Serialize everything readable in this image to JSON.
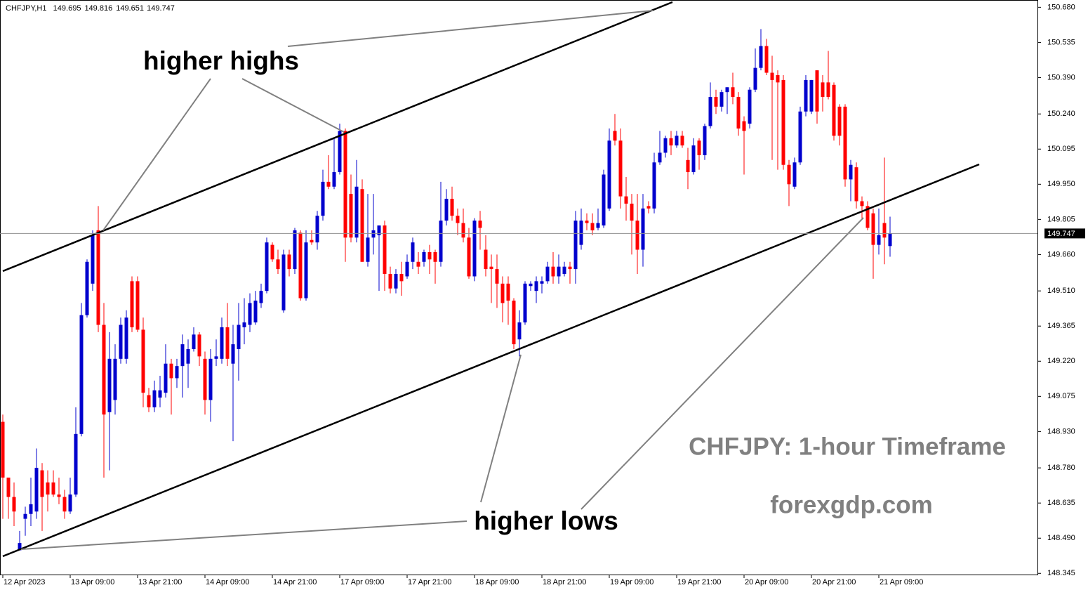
{
  "chart_data": {
    "type": "candlestick",
    "symbol": "CHFJPY,H1",
    "annotations": [
      "higher highs",
      "higher lows",
      "CHFJPY: 1-hour Timeframe",
      "forexgdp.com"
    ],
    "up_color": "#0000cd",
    "down_color": "#ff0000",
    "categories": [
      "12 Apr 2023",
      null,
      null,
      null,
      null,
      null,
      null,
      null,
      null,
      null,
      null,
      null,
      "13 Apr 09:00",
      null,
      null,
      null,
      null,
      null,
      null,
      null,
      null,
      null,
      null,
      null,
      "13 Apr 21:00",
      null,
      null,
      null,
      null,
      null,
      null,
      null,
      null,
      null,
      null,
      null,
      "14 Apr 09:00",
      null,
      null,
      null,
      null,
      null,
      null,
      null,
      null,
      null,
      null,
      null,
      "14 Apr 21:00",
      null,
      null,
      null,
      null,
      null,
      null,
      null,
      null,
      null,
      null,
      null,
      "17 Apr 09:00",
      null,
      null,
      null,
      null,
      null,
      null,
      null,
      null,
      null,
      null,
      null,
      "17 Apr 21:00",
      null,
      null,
      null,
      null,
      null,
      null,
      null,
      null,
      null,
      null,
      null,
      "18 Apr 09:00",
      null,
      null,
      null,
      null,
      null,
      null,
      null,
      null,
      null,
      null,
      null,
      "18 Apr 21:00",
      null,
      null,
      null,
      null,
      null,
      null,
      null,
      null,
      null,
      null,
      null,
      "19 Apr 09:00",
      null,
      null,
      null,
      null,
      null,
      null,
      null,
      null,
      null,
      null,
      null,
      "19 Apr 21:00",
      null,
      null,
      null,
      null,
      null,
      null,
      null,
      null,
      null,
      null,
      null,
      "20 Apr 09:00",
      null,
      null,
      null,
      null,
      null,
      null,
      null,
      null,
      null,
      null,
      null,
      "20 Apr 21:00",
      null,
      null,
      null,
      null,
      null,
      null,
      null,
      null,
      null,
      null,
      null,
      "21 Apr 09:00",
      null,
      null
    ],
    "open": [
      148.97,
      148.74,
      148.66,
      148.44,
      148.57,
      148.59,
      148.6,
      148.77,
      148.72,
      148.72,
      148.67,
      148.66,
      148.6,
      148.67,
      148.92,
      149.41,
      149.54,
      149.76,
      149.37,
      149.01,
      149.06,
      149.23,
      149.23,
      149.55,
      149.55,
      149.35,
      149.08,
      149.03,
      149.07,
      149.09,
      149.21,
      149.15,
      149.2,
      149.21,
      149.27,
      149.33,
      149.23,
      149.06,
      149.23,
      149.23,
      149.36,
      149.21,
      149.27,
      149.36,
      149.37,
      149.38,
      149.46,
      149.51,
      149.7,
      149.64,
      149.43,
      149.66,
      149.6,
      149.75,
      149.48,
      149.72,
      149.71,
      149.82,
      149.96,
      149.94,
      150.0,
      150.17,
      149.91,
      149.73,
      149.93,
      149.63,
      149.73,
      149.74,
      149.78,
      149.58,
      149.52,
      149.58,
      149.57,
      149.63,
      149.63,
      149.63,
      149.67,
      149.67,
      149.63,
      149.8,
      149.89,
      149.82,
      149.79,
      149.73,
      149.57,
      149.8,
      149.68,
      149.61,
      149.6,
      149.54,
      149.54,
      149.47,
      149.31,
      149.38,
      149.53,
      149.51,
      149.54,
      149.55,
      149.61,
      149.57,
      149.58,
      149.61,
      149.6,
      149.7,
      149.8,
      149.79,
      149.77,
      149.78,
      149.85,
      150.17,
      150.13,
      149.9,
      149.87,
      149.8,
      149.68,
      149.86,
      149.85,
      150.04,
      150.08,
      150.14,
      150.11,
      150.15,
      150.05,
      150.0,
      150.13,
      150.07,
      150.19,
      150.31,
      150.27,
      150.33,
      150.35,
      150.31,
      150.21,
      150.2,
      150.34,
      150.43,
      150.52,
      150.41,
      150.4,
      150.38,
      150.03,
      149.94,
      150.04,
      150.25,
      150.25,
      150.42,
      150.37,
      150.37,
      150.36,
      150.27,
      150.27,
      149.97,
      150.02,
      149.88,
      149.86,
      149.83,
      149.7,
      149.79,
      149.695
    ],
    "high": [
      149.0,
      148.74,
      148.72,
      148.52,
      148.62,
      148.74,
      148.86,
      148.8,
      148.77,
      148.77,
      148.74,
      148.69,
      148.74,
      149.03,
      149.46,
      149.64,
      149.76,
      149.86,
      149.46,
      149.34,
      149.29,
      149.4,
      149.43,
      149.57,
      149.57,
      149.4,
      149.11,
      149.14,
      149.16,
      149.29,
      149.23,
      149.23,
      149.33,
      149.31,
      149.36,
      149.34,
      149.26,
      149.27,
      149.31,
      149.4,
      149.46,
      149.37,
      149.46,
      149.48,
      149.5,
      149.51,
      149.54,
      149.73,
      149.71,
      149.68,
      149.68,
      149.68,
      149.77,
      149.76,
      149.76,
      149.76,
      149.84,
      150.01,
      150.07,
      150.14,
      150.2,
      150.18,
      149.99,
      150.05,
      149.97,
      149.91,
      149.91,
      149.78,
      149.8,
      149.61,
      149.6,
      149.63,
      149.66,
      149.73,
      149.67,
      149.68,
      149.7,
      149.68,
      149.96,
      149.93,
      149.94,
      149.85,
      149.85,
      149.77,
      149.81,
      149.84,
      149.74,
      149.66,
      149.66,
      149.57,
      149.57,
      149.48,
      149.43,
      149.55,
      149.55,
      149.57,
      149.57,
      149.63,
      149.67,
      149.66,
      149.63,
      149.63,
      149.84,
      149.85,
      149.83,
      149.83,
      149.85,
      150.01,
      150.18,
      150.24,
      150.18,
      149.98,
      149.91,
      149.91,
      149.91,
      149.88,
      150.08,
      150.17,
      150.15,
      150.17,
      150.17,
      150.17,
      150.1,
      150.14,
      150.14,
      150.2,
      150.37,
      150.34,
      150.34,
      150.35,
      150.41,
      150.33,
      150.23,
      150.35,
      150.51,
      150.59,
      150.55,
      150.48,
      150.42,
      150.4,
      150.05,
      150.06,
      150.27,
      150.4,
      150.38,
      150.42,
      150.4,
      150.5,
      150.37,
      150.28,
      150.28,
      150.05,
      150.04,
      149.9,
      149.88,
      149.85,
      149.85,
      150.06,
      149.816
    ],
    "low": [
      148.57,
      148.57,
      148.54,
      148.44,
      148.5,
      148.54,
      148.57,
      148.52,
      148.6,
      148.66,
      148.63,
      148.57,
      148.59,
      148.66,
      148.91,
      149.4,
      149.51,
      149.34,
      148.74,
      148.77,
      149.0,
      149.21,
      149.21,
      149.34,
      149.34,
      149.03,
      149.01,
      149.01,
      149.03,
      149.07,
      149.0,
      149.11,
      149.07,
      149.11,
      149.26,
      149.2,
      149.0,
      148.97,
      149.2,
      149.21,
      149.2,
      148.89,
      149.14,
      149.29,
      149.34,
      149.37,
      149.44,
      149.5,
      149.63,
      149.58,
      149.42,
      149.57,
      149.58,
      149.47,
      149.47,
      149.7,
      149.68,
      149.8,
      149.93,
      149.93,
      149.99,
      149.63,
      149.71,
      149.71,
      149.63,
      149.61,
      149.66,
      149.51,
      149.51,
      149.5,
      149.5,
      149.49,
      149.56,
      149.6,
      149.58,
      149.61,
      149.58,
      149.54,
      149.61,
      149.78,
      149.8,
      149.74,
      149.71,
      149.56,
      149.55,
      149.68,
      149.57,
      149.46,
      149.44,
      149.38,
      149.37,
      149.27,
      149.24,
      149.37,
      149.51,
      149.46,
      149.5,
      149.54,
      149.54,
      149.54,
      149.57,
      149.54,
      149.54,
      149.68,
      149.76,
      149.74,
      149.76,
      149.77,
      149.84,
      150.11,
      149.85,
      149.8,
      149.66,
      149.58,
      149.61,
      149.83,
      149.83,
      150.03,
      150.06,
      150.07,
      150.1,
      150.1,
      149.93,
      149.99,
      150.01,
      150.05,
      150.18,
      150.24,
      150.25,
      150.24,
      150.28,
      150.15,
      149.99,
      150.18,
      150.33,
      150.42,
      150.4,
      150.05,
      150.01,
      150.01,
      149.86,
      149.93,
      150.03,
      150.23,
      150.24,
      150.2,
      150.25,
      150.3,
      150.13,
      150.11,
      149.94,
      149.88,
      149.85,
      149.81,
      149.76,
      149.56,
      149.66,
      149.62,
      149.651
    ],
    "close": [
      148.74,
      148.66,
      148.6,
      148.47,
      148.59,
      148.63,
      148.78,
      148.66,
      148.67,
      148.67,
      148.66,
      148.6,
      148.67,
      148.92,
      149.41,
      149.63,
      149.74,
      149.37,
      149.0,
      149.23,
      149.23,
      149.37,
      149.4,
      149.36,
      149.35,
      149.09,
      149.03,
      149.1,
      149.1,
      149.21,
      149.15,
      149.2,
      149.29,
      149.27,
      149.33,
      149.24,
      149.06,
      149.23,
      149.24,
      149.36,
      149.23,
      149.29,
      149.37,
      149.38,
      149.46,
      149.47,
      149.51,
      149.71,
      149.64,
      149.6,
      149.66,
      149.6,
      149.76,
      149.48,
      149.71,
      149.71,
      149.82,
      149.96,
      149.94,
      150.0,
      150.17,
      149.73,
      149.73,
      149.94,
      149.63,
      149.73,
      149.76,
      149.78,
      149.58,
      149.52,
      149.58,
      149.55,
      149.63,
      149.71,
      149.61,
      149.67,
      149.64,
      149.63,
      149.8,
      149.89,
      149.82,
      149.79,
      149.73,
      149.57,
      149.8,
      149.77,
      149.6,
      149.6,
      149.54,
      149.46,
      149.47,
      149.29,
      149.38,
      149.54,
      149.54,
      149.55,
      149.55,
      149.61,
      149.57,
      149.61,
      149.61,
      149.6,
      149.8,
      149.8,
      149.79,
      149.76,
      149.79,
      149.99,
      150.13,
      150.13,
      149.9,
      149.87,
      149.8,
      149.68,
      149.85,
      149.85,
      150.04,
      150.08,
      150.14,
      150.11,
      150.15,
      150.11,
      150.0,
      150.11,
      150.07,
      150.19,
      150.31,
      150.27,
      150.33,
      150.35,
      150.31,
      150.18,
      150.17,
      150.34,
      150.43,
      150.52,
      150.41,
      150.38,
      150.37,
      150.03,
      149.95,
      150.04,
      150.25,
      150.38,
      150.38,
      150.25,
      150.31,
      150.31,
      150.15,
      150.15,
      149.97,
      150.03,
      149.88,
      149.86,
      149.77,
      149.7,
      149.74,
      149.73,
      149.747
    ],
    "ylim": [
      148.34,
      150.71
    ],
    "yticks": [
      {
        "value": 150.68,
        "label": "150.680"
      },
      {
        "value": 150.535,
        "label": "150.535"
      },
      {
        "value": 150.39,
        "label": "150.390"
      },
      {
        "value": 150.24,
        "label": "150.240"
      },
      {
        "value": 150.095,
        "label": "150.095"
      },
      {
        "value": 149.95,
        "label": "149.950"
      },
      {
        "value": 149.805,
        "label": "149.805"
      },
      {
        "value": 149.66,
        "label": "149.660"
      },
      {
        "value": 149.51,
        "label": "149.510"
      },
      {
        "value": 149.365,
        "label": "149.365"
      },
      {
        "value": 149.22,
        "label": "149.220"
      },
      {
        "value": 149.075,
        "label": "149.075"
      },
      {
        "value": 148.93,
        "label": "148.930"
      },
      {
        "value": 148.78,
        "label": "148.780"
      },
      {
        "value": 148.635,
        "label": "148.635"
      },
      {
        "value": 148.49,
        "label": "148.490"
      },
      {
        "value": 148.345,
        "label": "148.345"
      }
    ]
  }
}
